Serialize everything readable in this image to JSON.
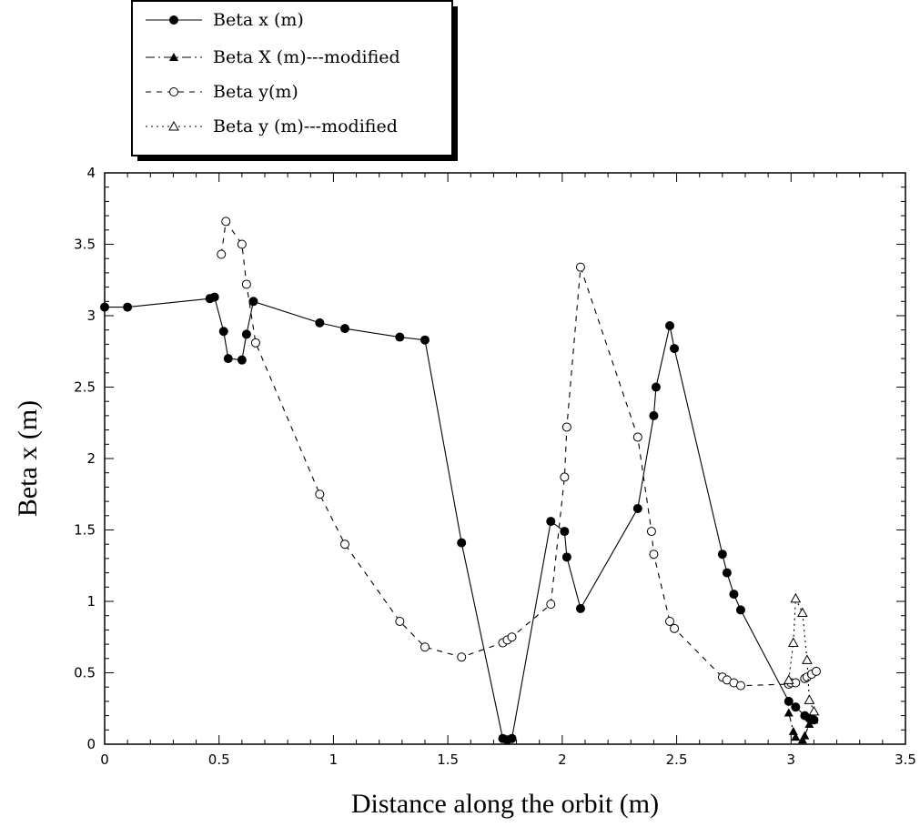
{
  "chart_data": {
    "type": "line",
    "title": "",
    "xlabel": "Distance along the orbit (m)",
    "ylabel": "Beta x (m)",
    "xlim": [
      0,
      3.5
    ],
    "ylim": [
      0,
      4
    ],
    "x_ticks": [
      "0",
      "0.5",
      "1",
      "1.5",
      "2",
      "2.5",
      "3",
      "3.5"
    ],
    "y_ticks": [
      "0",
      "0.5",
      "1",
      "1.5",
      "2",
      "2.5",
      "3",
      "3.5",
      "4"
    ],
    "grid": false,
    "legend_position": "top-left, outside plot",
    "series": [
      {
        "name": "Beta x (m)",
        "line": "solid",
        "marker": "filled-circle",
        "points": [
          [
            0.0,
            3.06
          ],
          [
            0.1,
            3.06
          ],
          [
            0.46,
            3.12
          ],
          [
            0.48,
            3.13
          ],
          [
            0.52,
            2.89
          ],
          [
            0.54,
            2.7
          ],
          [
            0.6,
            2.69
          ],
          [
            0.62,
            2.87
          ],
          [
            0.65,
            3.1
          ],
          [
            0.94,
            2.95
          ],
          [
            1.05,
            2.91
          ],
          [
            1.29,
            2.85
          ],
          [
            1.4,
            2.83
          ],
          [
            1.56,
            1.41
          ],
          [
            1.74,
            0.04
          ],
          [
            1.76,
            0.03
          ],
          [
            1.78,
            0.04
          ],
          [
            1.95,
            1.56
          ],
          [
            2.01,
            1.49
          ],
          [
            2.02,
            1.31
          ],
          [
            2.08,
            0.95
          ],
          [
            2.33,
            1.65
          ],
          [
            2.4,
            2.3
          ],
          [
            2.41,
            2.5
          ],
          [
            2.47,
            2.93
          ],
          [
            2.49,
            2.77
          ],
          [
            2.7,
            1.33
          ],
          [
            2.72,
            1.2
          ],
          [
            2.75,
            1.05
          ],
          [
            2.78,
            0.94
          ],
          [
            2.99,
            0.3
          ],
          [
            3.02,
            0.26
          ],
          [
            3.06,
            0.2
          ],
          [
            3.08,
            0.18
          ],
          [
            3.1,
            0.17
          ]
        ]
      },
      {
        "name": "Beta X (m)---modified",
        "line": "dash-dot",
        "marker": "filled-triangle",
        "points": [
          [
            2.99,
            0.22
          ],
          [
            3.01,
            0.09
          ],
          [
            3.02,
            0.05
          ],
          [
            3.05,
            0.03
          ],
          [
            3.06,
            0.06
          ],
          [
            3.08,
            0.14
          ],
          [
            3.1,
            0.17
          ]
        ]
      },
      {
        "name": "Beta y(m)",
        "line": "dashed",
        "marker": "open-circle",
        "points": [
          [
            0.51,
            3.43
          ],
          [
            0.53,
            3.66
          ],
          [
            0.6,
            3.5
          ],
          [
            0.62,
            3.22
          ],
          [
            0.66,
            2.81
          ],
          [
            0.94,
            1.75
          ],
          [
            1.05,
            1.4
          ],
          [
            1.29,
            0.86
          ],
          [
            1.4,
            0.68
          ],
          [
            1.56,
            0.61
          ],
          [
            1.74,
            0.71
          ],
          [
            1.76,
            0.73
          ],
          [
            1.78,
            0.75
          ],
          [
            1.95,
            0.98
          ],
          [
            2.01,
            1.87
          ],
          [
            2.02,
            2.22
          ],
          [
            2.08,
            3.34
          ],
          [
            2.33,
            2.15
          ],
          [
            2.39,
            1.49
          ],
          [
            2.4,
            1.33
          ],
          [
            2.47,
            0.86
          ],
          [
            2.49,
            0.81
          ],
          [
            2.7,
            0.47
          ],
          [
            2.72,
            0.45
          ],
          [
            2.75,
            0.43
          ],
          [
            2.78,
            0.41
          ],
          [
            2.99,
            0.42
          ],
          [
            3.0,
            0.43
          ],
          [
            3.02,
            0.43
          ],
          [
            3.06,
            0.46
          ],
          [
            3.07,
            0.47
          ],
          [
            3.09,
            0.49
          ],
          [
            3.11,
            0.51
          ]
        ]
      },
      {
        "name": "Beta y (m)---modified",
        "line": "dotted",
        "marker": "open-triangle",
        "points": [
          [
            2.99,
            0.45
          ],
          [
            3.01,
            0.71
          ],
          [
            3.02,
            1.02
          ],
          [
            3.05,
            0.92
          ],
          [
            3.07,
            0.59
          ],
          [
            3.08,
            0.31
          ],
          [
            3.1,
            0.23
          ]
        ]
      }
    ]
  }
}
